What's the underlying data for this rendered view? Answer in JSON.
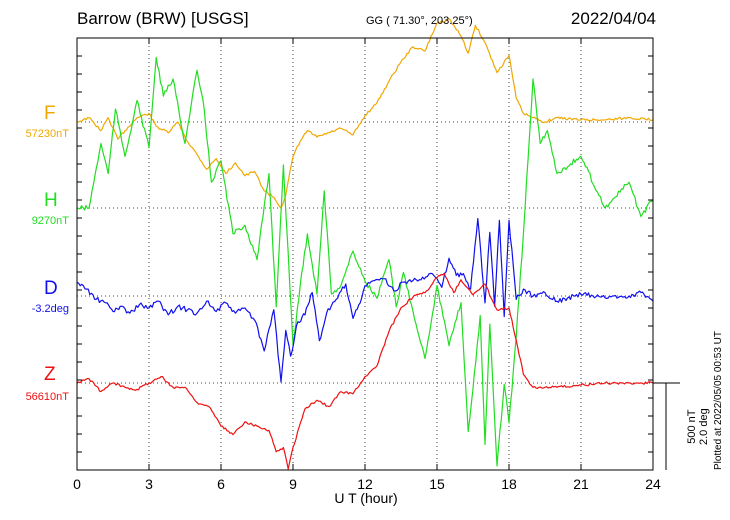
{
  "header": {
    "station": "Barrow (BRW)  [USGS]",
    "coords": "GG ( 71.30°, 203.25°)",
    "date": "2022/04/04"
  },
  "footer": {
    "plotted": "Plotted at 2022/05/05 00:53 UT"
  },
  "scale": {
    "nt": "500 nT",
    "deg": "2.0 deg"
  },
  "chart_data": {
    "type": "line",
    "xlabel": "U T (hour)",
    "xlim": [
      0,
      24
    ],
    "xticks": [
      "0",
      "3",
      "6",
      "9",
      "12",
      "15",
      "18",
      "21",
      "24"
    ],
    "grid": true,
    "series": [
      {
        "name": "F",
        "baseline": "57230nT",
        "color": "#f0a800",
        "x": [
          0,
          0.5,
          1,
          1.3,
          1.7,
          2,
          2.5,
          3,
          3.3,
          3.8,
          4.2,
          4.6,
          5,
          5.4,
          5.8,
          6.2,
          6.6,
          7,
          7.4,
          7.8,
          8.2,
          8.5,
          8.7,
          9,
          9.3,
          9.6,
          10,
          10.5,
          11,
          11.5,
          12,
          12.5,
          13,
          13.5,
          14,
          14.5,
          15,
          15.5,
          16,
          16.3,
          16.6,
          17,
          17.5,
          18,
          18.3,
          18.6,
          19,
          19.5,
          20,
          21,
          22,
          23,
          24
        ],
        "y": [
          0,
          10,
          -20,
          10,
          -40,
          -20,
          10,
          20,
          -10,
          -25,
          0,
          -45,
          -75,
          -110,
          -85,
          -120,
          -95,
          -125,
          -115,
          -160,
          -175,
          -200,
          -170,
          -80,
          -45,
          -20,
          -35,
          -25,
          -15,
          -30,
          15,
          45,
          95,
          140,
          175,
          165,
          230,
          240,
          200,
          160,
          225,
          185,
          115,
          155,
          55,
          20,
          10,
          0,
          10,
          5,
          5,
          10,
          5
        ]
      },
      {
        "name": "H",
        "baseline": "9270nT",
        "color": "#22dd22",
        "x": [
          0,
          0.5,
          1,
          1.3,
          1.6,
          2,
          2.5,
          3,
          3.3,
          3.6,
          4,
          4.5,
          5,
          5.3,
          5.6,
          6,
          6.5,
          7,
          7.5,
          8,
          8.3,
          8.6,
          9,
          9.3,
          9.6,
          10,
          10.3,
          10.6,
          11,
          11.5,
          12,
          12.5,
          13,
          13.3,
          13.6,
          14,
          14.5,
          15,
          15.5,
          16,
          16.3,
          16.5,
          16.8,
          17,
          17.2,
          17.5,
          17.8,
          18,
          18.3,
          18.6,
          19,
          19.3,
          19.6,
          20,
          21,
          22,
          23,
          23.5,
          24
        ],
        "y": [
          0,
          0,
          150,
          80,
          230,
          120,
          250,
          140,
          350,
          260,
          300,
          150,
          320,
          230,
          60,
          110,
          -60,
          -40,
          -120,
          80,
          -230,
          100,
          -320,
          -180,
          -60,
          -200,
          40,
          -200,
          -180,
          -100,
          -170,
          -210,
          -120,
          -230,
          -150,
          -240,
          -350,
          -180,
          -320,
          -220,
          -520,
          -420,
          -250,
          -550,
          -270,
          -600,
          -410,
          -500,
          -300,
          -60,
          300,
          150,
          180,
          80,
          120,
          0,
          60,
          -20,
          20
        ]
      },
      {
        "name": "D",
        "baseline": "-3.2deg",
        "color": "#1010ee",
        "x": [
          0,
          0.4,
          0.8,
          1.2,
          1.5,
          1.8,
          2.2,
          2.6,
          3,
          3.4,
          3.8,
          4.2,
          4.6,
          5,
          5.4,
          5.8,
          6.2,
          6.6,
          7,
          7.4,
          7.8,
          8.2,
          8.5,
          8.7,
          8.9,
          9.2,
          9.5,
          9.8,
          10.1,
          10.4,
          10.8,
          11.2,
          11.5,
          11.8,
          12,
          12.4,
          12.8,
          13.2,
          13.6,
          14,
          14.4,
          14.8,
          15.2,
          15.5,
          15.8,
          16.1,
          16.4,
          16.7,
          17,
          17.2,
          17.4,
          17.6,
          17.8,
          18,
          18.3,
          18.6,
          19,
          19.5,
          20,
          21,
          22,
          23,
          23.5,
          24
        ],
        "y": [
          0.8,
          0.4,
          -0.2,
          -0.4,
          -0.9,
          -0.6,
          -1.0,
          -0.5,
          -0.7,
          -0.3,
          -1.1,
          -0.6,
          -0.8,
          -1.0,
          -0.3,
          -0.9,
          -0.4,
          -1.0,
          -0.7,
          -1.4,
          -3.2,
          -0.8,
          -5.0,
          -2.0,
          -3.5,
          -1.5,
          -1.1,
          0.2,
          -2.6,
          -1.0,
          -0.2,
          0.7,
          -1.3,
          -0.4,
          0.6,
          0.9,
          1.0,
          0.3,
          0.8,
          0.9,
          1.1,
          1.3,
          0.5,
          2.2,
          1.2,
          1.3,
          0.4,
          4.5,
          -0.4,
          3.7,
          -0.6,
          4.4,
          -1.2,
          4.4,
          -0.2,
          0.4,
          0.0,
          0.2,
          -0.3,
          0.1,
          -0.1,
          0.0,
          0.2,
          -0.3
        ]
      },
      {
        "name": "Z",
        "baseline": "56610nT",
        "color": "#ee1111",
        "x": [
          0,
          0.5,
          1,
          1.5,
          2,
          2.5,
          3,
          3.5,
          4,
          4.5,
          5,
          5.5,
          6,
          6.5,
          7,
          7.5,
          8,
          8.3,
          8.6,
          8.8,
          9,
          9.5,
          10,
          10.5,
          11,
          11.5,
          12,
          12.5,
          13,
          13.5,
          14,
          14.5,
          15,
          15.3,
          15.7,
          16,
          16.5,
          17,
          17.5,
          18,
          18.3,
          18.6,
          19,
          19.5,
          20,
          21,
          22,
          23,
          24
        ],
        "y": [
          0,
          10,
          -20,
          0,
          -10,
          -15,
          0,
          15,
          -10,
          -10,
          -45,
          -55,
          -100,
          -120,
          -90,
          -100,
          -110,
          -160,
          -150,
          -200,
          -150,
          -60,
          -40,
          -55,
          -20,
          -25,
          15,
          40,
          120,
          175,
          200,
          210,
          245,
          255,
          210,
          240,
          205,
          230,
          170,
          175,
          100,
          20,
          -10,
          -10,
          -10,
          -5,
          0,
          0,
          0
        ]
      }
    ]
  }
}
